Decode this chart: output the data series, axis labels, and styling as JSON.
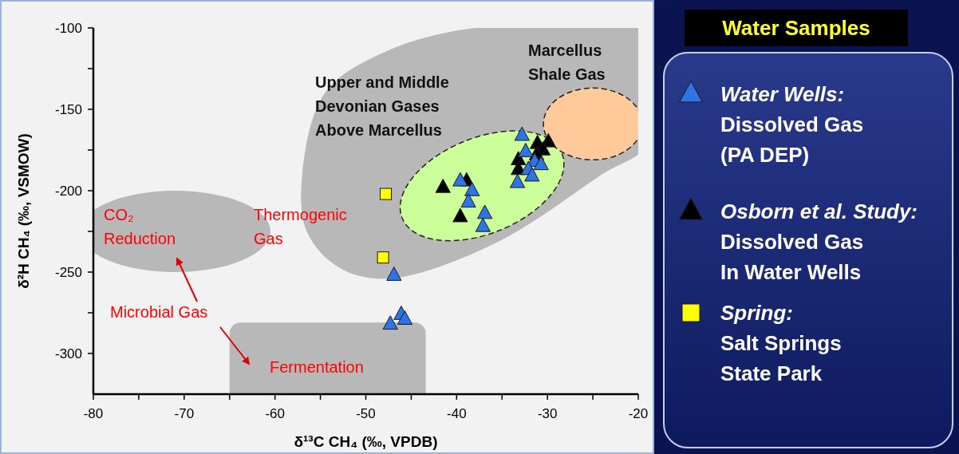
{
  "chart_data": {
    "type": "scatter",
    "xlabel": "δ¹³C CH₄ (‰, VPDB)",
    "ylabel": "δ²H CH₄ (‰, VSMOW)",
    "legend_title": "Water Samples",
    "legend": "right",
    "xlim": [
      -80,
      -20
    ],
    "xticks": [
      -80,
      {
        "value": -75,
        "label": null
      },
      -70,
      {
        "value": -65,
        "label": null
      },
      -60,
      {
        "value": -55,
        "label": null
      },
      -50,
      {
        "value": -45,
        "label": null
      },
      -40,
      {
        "value": -35,
        "label": null
      },
      -30,
      {
        "value": -25,
        "label": null
      },
      -20
    ],
    "ylim": [
      -325,
      -100
    ],
    "yticks": [
      -100,
      {
        "value": -125,
        "label": null
      },
      -150,
      {
        "value": -175,
        "label": null
      },
      -200,
      {
        "value": -225,
        "label": null
      },
      -250,
      {
        "value": -275,
        "label": null
      },
      -300
    ],
    "series": [
      {
        "name": "Water Wells: Dissolved Gas (PA DEP)",
        "color": "#2f74e6",
        "marker": "triangle",
        "x": [
          -32.8,
          -32.4,
          -31.4,
          -30.7,
          -32.1,
          -31.7,
          -33.3,
          -39.6,
          -38.3,
          -38.7,
          -36.9,
          -37.1,
          -46.9,
          -46.1,
          -45.7,
          -47.3
        ],
        "values": [
          -166,
          -176,
          -182,
          -184,
          -187,
          -191,
          -195,
          -194,
          -200,
          -207,
          -214,
          -222,
          -252,
          -276,
          -279,
          -282
        ]
      },
      {
        "name": "Osborn et al. Study: Dissolved Gas In Water Wells",
        "color": "#000000",
        "marker": "triangle",
        "x": [
          -29.9,
          -31.1,
          -30.5,
          -31.2,
          -33.2,
          -33.2,
          -38.9,
          -41.5,
          -39.6
        ],
        "values": [
          -170,
          -171,
          -175,
          -178,
          -181,
          -187,
          -194,
          -198,
          -216
        ]
      },
      {
        "name": "Spring: Salt Springs State Park",
        "color": "#ffff00",
        "marker": "square",
        "x": [
          -47.8,
          -48.1
        ],
        "values": [
          -202,
          -241
        ]
      }
    ],
    "annotations": [
      "Upper and Middle Devonian Gases Above Marcellus",
      "Marcellus Shale Gas",
      "Thermogenic Gas",
      "CO₂ Reduction",
      "Microbial Gas",
      "Fermentation"
    ]
  }
}
